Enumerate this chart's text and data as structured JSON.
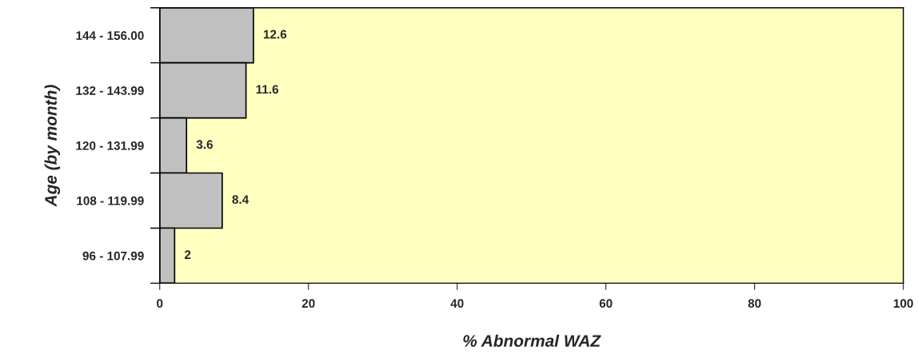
{
  "chart_data": {
    "type": "bar",
    "orientation": "horizontal",
    "xlabel": "% Abnormal WAZ",
    "ylabel": "Age (by month)",
    "categories": [
      "144 - 156.00",
      "132 - 143.99",
      "120 - 131.99",
      "108 - 119.99",
      "96 - 107.99"
    ],
    "values": [
      12.6,
      11.6,
      3.6,
      8.4,
      2
    ],
    "color": "#c0c0c0",
    "xlim": [
      0,
      100
    ],
    "xticks": [
      0,
      20,
      40,
      60,
      80,
      100
    ],
    "grid": false,
    "data_labels": true
  }
}
